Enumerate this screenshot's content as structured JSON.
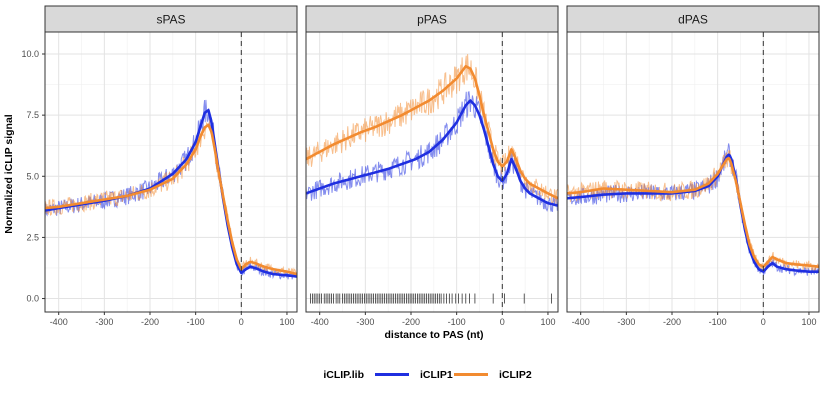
{
  "chart_data": {
    "type": "line",
    "xlabel": "distance to PAS (nt)",
    "ylabel": "Normalized iCLIP signal",
    "xlim": [
      -430,
      122
    ],
    "ylim": [
      -0.55,
      10.9
    ],
    "x_ticks": [
      -400,
      -300,
      -200,
      -100,
      0,
      100
    ],
    "x_tick_labels": [
      "-400",
      "-300",
      "-200",
      "-100",
      "0",
      "100"
    ],
    "y_ticks": [
      0,
      2.5,
      5,
      7.5,
      10
    ],
    "y_tick_labels": [
      "0.0",
      "2.5",
      "5.0",
      "7.5",
      "10.0"
    ],
    "grid": true,
    "vline_x": 0,
    "legend": {
      "title": "iCLIP.lib",
      "position": "bottom",
      "entries": [
        {
          "label": "iCLIP1",
          "color": "#1f2fe0"
        },
        {
          "label": "iCLIP2",
          "color": "#f28b30"
        }
      ]
    },
    "colors": {
      "iCLIP1": "#1f2fe0",
      "iCLIP2": "#f28b30"
    },
    "panels": [
      {
        "facet": "sPAS",
        "series": [
          {
            "name": "iCLIP1",
            "x": [
              -430,
              -400,
              -350,
              -300,
              -250,
              -200,
              -150,
              -120,
              -100,
              -90,
              -80,
              -72,
              -65,
              -58,
              -50,
              -40,
              -30,
              -20,
              -10,
              0,
              10,
              20,
              30,
              50,
              70,
              100,
              122
            ],
            "y": [
              3.6,
              3.7,
              3.85,
              4.0,
              4.2,
              4.5,
              5.1,
              5.7,
              6.4,
              7.0,
              7.6,
              7.7,
              7.2,
              6.3,
              5.3,
              4.1,
              3.0,
              2.1,
              1.4,
              1.05,
              1.2,
              1.3,
              1.25,
              1.1,
              1.0,
              0.95,
              0.9
            ]
          },
          {
            "name": "iCLIP2",
            "x": [
              -430,
              -400,
              -350,
              -300,
              -250,
              -200,
              -150,
              -120,
              -100,
              -90,
              -80,
              -72,
              -65,
              -58,
              -50,
              -40,
              -30,
              -20,
              -10,
              0,
              10,
              20,
              30,
              50,
              70,
              100,
              122
            ],
            "y": [
              3.7,
              3.75,
              3.9,
              4.05,
              4.2,
              4.45,
              4.9,
              5.5,
              6.1,
              6.6,
              7.0,
              7.1,
              6.8,
              6.1,
              5.2,
              4.2,
              3.2,
              2.3,
              1.6,
              1.2,
              1.4,
              1.5,
              1.45,
              1.3,
              1.2,
              1.1,
              1.0
            ]
          }
        ]
      },
      {
        "facet": "pPAS",
        "series": [
          {
            "name": "iCLIP1",
            "x": [
              -430,
              -400,
              -370,
              -340,
              -310,
              -280,
              -250,
              -220,
              -190,
              -160,
              -130,
              -100,
              -80,
              -70,
              -60,
              -50,
              -40,
              -30,
              -20,
              -10,
              0,
              10,
              20,
              30,
              40,
              50,
              60,
              80,
              100,
              122
            ],
            "y": [
              4.3,
              4.5,
              4.7,
              4.85,
              5.0,
              5.15,
              5.3,
              5.5,
              5.7,
              6.0,
              6.5,
              7.2,
              7.9,
              8.1,
              7.9,
              7.5,
              6.9,
              6.2,
              5.5,
              5.0,
              4.8,
              5.1,
              5.7,
              5.3,
              4.8,
              4.5,
              4.3,
              4.1,
              3.9,
              3.8
            ]
          },
          {
            "name": "iCLIP2",
            "x": [
              -430,
              -400,
              -370,
              -340,
              -310,
              -280,
              -250,
              -220,
              -190,
              -160,
              -130,
              -100,
              -80,
              -70,
              -60,
              -50,
              -40,
              -30,
              -20,
              -10,
              0,
              10,
              20,
              30,
              40,
              50,
              60,
              80,
              100,
              122
            ],
            "y": [
              5.7,
              6.0,
              6.3,
              6.55,
              6.8,
              7.0,
              7.25,
              7.5,
              7.8,
              8.1,
              8.5,
              9.0,
              9.5,
              9.4,
              9.0,
              8.3,
              7.5,
              6.8,
              6.1,
              5.6,
              5.4,
              5.6,
              6.1,
              5.7,
              5.2,
              4.9,
              4.7,
              4.5,
              4.3,
              4.1
            ]
          }
        ],
        "rug_x": [
          -420,
          -416,
          -412,
          -408,
          -404,
          -400,
          -396,
          -390,
          -386,
          -382,
          -378,
          -374,
          -370,
          -364,
          -360,
          -356,
          -350,
          -346,
          -342,
          -338,
          -334,
          -330,
          -326,
          -322,
          -318,
          -314,
          -310,
          -306,
          -302,
          -298,
          -294,
          -290,
          -286,
          -282,
          -278,
          -274,
          -270,
          -266,
          -262,
          -258,
          -254,
          -250,
          -246,
          -242,
          -238,
          -234,
          -230,
          -226,
          -222,
          -218,
          -214,
          -210,
          -206,
          -202,
          -198,
          -194,
          -190,
          -186,
          -182,
          -178,
          -174,
          -170,
          -166,
          -162,
          -158,
          -154,
          -150,
          -146,
          -142,
          -138,
          -134,
          -128,
          -122,
          -116,
          -110,
          -102,
          -96,
          -88,
          -80,
          -72,
          -60,
          -20,
          5,
          48,
          108
        ]
      },
      {
        "facet": "dPAS",
        "series": [
          {
            "name": "iCLIP1",
            "x": [
              -430,
              -400,
              -350,
              -300,
              -250,
              -200,
              -150,
              -120,
              -100,
              -90,
              -80,
              -75,
              -70,
              -60,
              -50,
              -40,
              -30,
              -20,
              -10,
              0,
              10,
              20,
              30,
              50,
              70,
              100,
              122
            ],
            "y": [
              4.1,
              4.15,
              4.25,
              4.3,
              4.3,
              4.3,
              4.4,
              4.6,
              5.0,
              5.4,
              5.8,
              5.9,
              5.7,
              4.9,
              3.8,
              2.8,
              2.0,
              1.5,
              1.2,
              1.1,
              1.3,
              1.45,
              1.3,
              1.2,
              1.15,
              1.1,
              1.1
            ]
          },
          {
            "name": "iCLIP2",
            "x": [
              -430,
              -400,
              -350,
              -300,
              -250,
              -200,
              -150,
              -120,
              -100,
              -90,
              -80,
              -75,
              -70,
              -60,
              -50,
              -40,
              -30,
              -20,
              -10,
              0,
              10,
              20,
              30,
              50,
              70,
              100,
              122
            ],
            "y": [
              4.3,
              4.35,
              4.5,
              4.45,
              4.4,
              4.35,
              4.45,
              4.7,
              5.1,
              5.4,
              5.7,
              5.75,
              5.5,
              4.8,
              3.9,
              3.0,
              2.2,
              1.7,
              1.4,
              1.3,
              1.5,
              1.7,
              1.6,
              1.45,
              1.4,
              1.35,
              1.3
            ]
          }
        ]
      }
    ]
  }
}
